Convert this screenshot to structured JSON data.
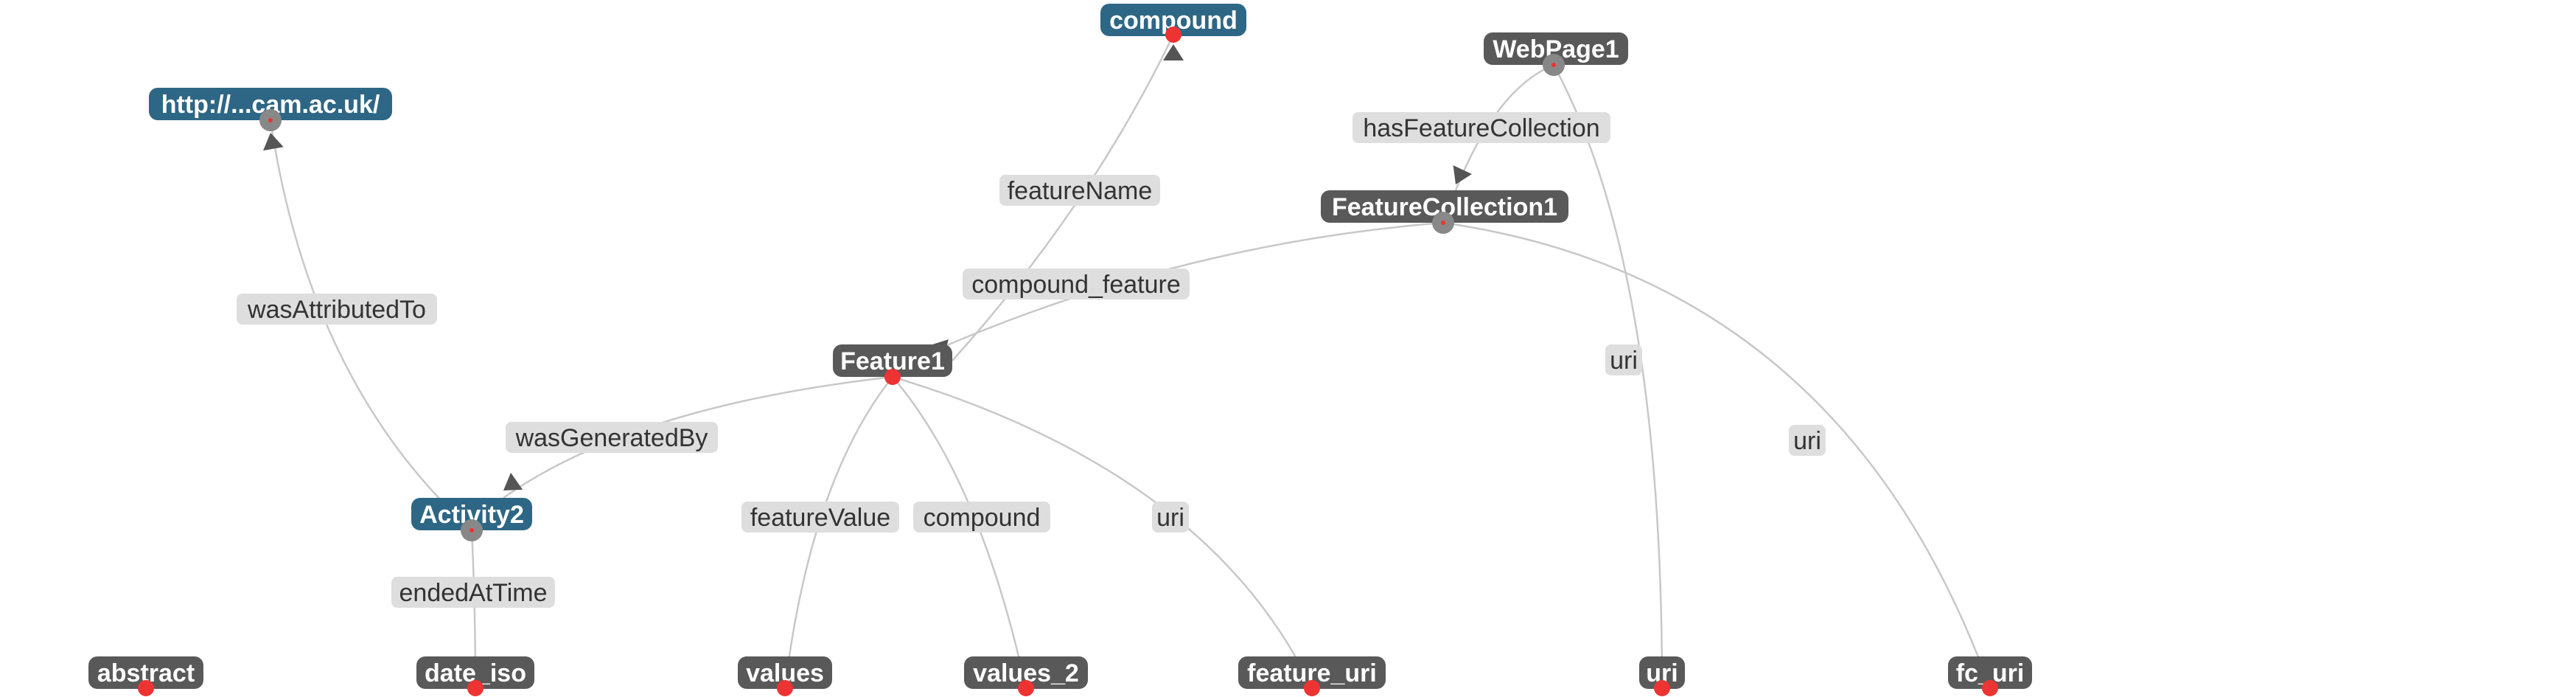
{
  "colors": {
    "node_class": "#2e6785",
    "node_default": "#595959",
    "edge": "#c8c8c8",
    "edge_label_bg": "#dedede",
    "port_red": "#ee3333",
    "port_gray": "#888888"
  },
  "nodes": [
    {
      "id": "compound_class",
      "label": "compound",
      "kind": "class"
    },
    {
      "id": "webpage1",
      "label": "WebPage1",
      "kind": "default"
    },
    {
      "id": "cam_uri",
      "label": "http://...cam.ac.uk/",
      "kind": "class"
    },
    {
      "id": "featurecollection1",
      "label": "FeatureCollection1",
      "kind": "default"
    },
    {
      "id": "feature1",
      "label": "Feature1",
      "kind": "default"
    },
    {
      "id": "activity2",
      "label": "Activity2",
      "kind": "class"
    },
    {
      "id": "abstract",
      "label": "abstract",
      "kind": "default"
    },
    {
      "id": "date_iso",
      "label": "date_iso",
      "kind": "default"
    },
    {
      "id": "values",
      "label": "values",
      "kind": "default"
    },
    {
      "id": "values_2",
      "label": "values_2",
      "kind": "default"
    },
    {
      "id": "feature_uri",
      "label": "feature_uri",
      "kind": "default"
    },
    {
      "id": "uri",
      "label": "uri",
      "kind": "default"
    },
    {
      "id": "fc_uri",
      "label": "fc_uri",
      "kind": "default"
    }
  ],
  "edges": [
    {
      "id": "e_featurename",
      "label": "featureName",
      "from": "feature1",
      "to": "compound_class",
      "arrow": true
    },
    {
      "id": "e_hasfc",
      "label": "hasFeatureCollection",
      "from": "webpage1",
      "to": "featurecollection1",
      "arrow": true
    },
    {
      "id": "e_compound_feature",
      "label": "compound_feature",
      "from": "featurecollection1",
      "to": "feature1",
      "arrow": true
    },
    {
      "id": "e_wasattributedto",
      "label": "wasAttributedTo",
      "from": "activity2",
      "to": "cam_uri",
      "arrow": true
    },
    {
      "id": "e_wasgeneratedby",
      "label": "wasGeneratedBy",
      "from": "feature1",
      "to": "activity2",
      "arrow": true
    },
    {
      "id": "e_uri_webpage",
      "label": "uri",
      "from": "webpage1",
      "to": "uri",
      "arrow": false
    },
    {
      "id": "e_uri_fc",
      "label": "uri",
      "from": "featurecollection1",
      "to": "fc_uri",
      "arrow": false
    },
    {
      "id": "e_featurevalue",
      "label": "featureValue",
      "from": "feature1",
      "to": "values",
      "arrow": false
    },
    {
      "id": "e_compound",
      "label": "compound",
      "from": "feature1",
      "to": "values_2",
      "arrow": false
    },
    {
      "id": "e_uri_feature",
      "label": "uri",
      "from": "feature1",
      "to": "feature_uri",
      "arrow": false
    },
    {
      "id": "e_endedattime",
      "label": "endedAtTime",
      "from": "activity2",
      "to": "date_iso",
      "arrow": false
    }
  ]
}
